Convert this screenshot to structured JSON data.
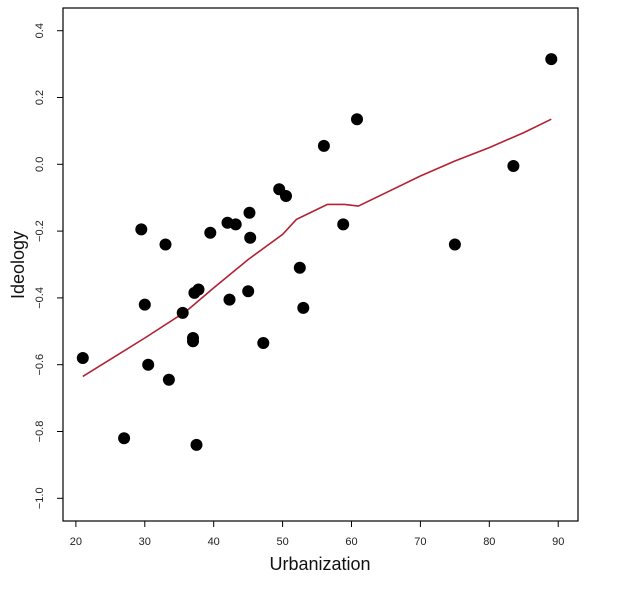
{
  "chart_data": {
    "type": "scatter",
    "xlabel": "Urbanization",
    "ylabel": "Ideology",
    "xlim": [
      19,
      92
    ],
    "ylim": [
      -1.05,
      0.45
    ],
    "xticks": [
      20,
      30,
      40,
      50,
      60,
      70,
      80,
      90
    ],
    "yticks": [
      -1.0,
      -0.8,
      -0.6,
      -0.4,
      -0.2,
      0.0,
      0.2,
      0.4
    ],
    "ytick_labels": [
      "−1.0",
      "−0.8",
      "−0.6",
      "−0.4",
      "−0.2",
      "0.0",
      "0.2",
      "0.4"
    ],
    "xtick_labels": [
      "20",
      "30",
      "40",
      "50",
      "60",
      "70",
      "80",
      "90"
    ],
    "grid": false,
    "series": [
      {
        "kind": "points",
        "color": "#000000",
        "points": [
          [
            21.0,
            -0.58
          ],
          [
            27.0,
            -0.82
          ],
          [
            29.5,
            -0.195
          ],
          [
            30.0,
            -0.42
          ],
          [
            30.5,
            -0.6
          ],
          [
            33.0,
            -0.24
          ],
          [
            33.5,
            -0.645
          ],
          [
            35.5,
            -0.445
          ],
          [
            37.0,
            -0.52
          ],
          [
            37.0,
            -0.53
          ],
          [
            37.2,
            -0.385
          ],
          [
            37.5,
            -0.84
          ],
          [
            37.8,
            -0.375
          ],
          [
            39.5,
            -0.205
          ],
          [
            42.0,
            -0.175
          ],
          [
            42.3,
            -0.405
          ],
          [
            43.2,
            -0.18
          ],
          [
            45.0,
            -0.38
          ],
          [
            45.2,
            -0.145
          ],
          [
            45.3,
            -0.22
          ],
          [
            47.2,
            -0.535
          ],
          [
            49.5,
            -0.075
          ],
          [
            50.5,
            -0.095
          ],
          [
            52.5,
            -0.31
          ],
          [
            53.0,
            -0.43
          ],
          [
            56.0,
            0.055
          ],
          [
            58.8,
            -0.18
          ],
          [
            60.8,
            0.135
          ],
          [
            75.0,
            -0.24
          ],
          [
            83.5,
            -0.005
          ],
          [
            89.0,
            0.315
          ]
        ]
      },
      {
        "kind": "smooth-line",
        "color": "#b22234",
        "points": [
          [
            21.0,
            -0.635
          ],
          [
            30.0,
            -0.52
          ],
          [
            36.0,
            -0.44
          ],
          [
            40.0,
            -0.37
          ],
          [
            45.0,
            -0.285
          ],
          [
            50.0,
            -0.21
          ],
          [
            52.0,
            -0.165
          ],
          [
            55.0,
            -0.135
          ],
          [
            56.5,
            -0.12
          ],
          [
            59.0,
            -0.12
          ],
          [
            61.0,
            -0.125
          ],
          [
            65.0,
            -0.085
          ],
          [
            70.0,
            -0.035
          ],
          [
            75.0,
            0.01
          ],
          [
            80.0,
            0.05
          ],
          [
            85.0,
            0.095
          ],
          [
            89.0,
            0.135
          ]
        ]
      }
    ]
  }
}
